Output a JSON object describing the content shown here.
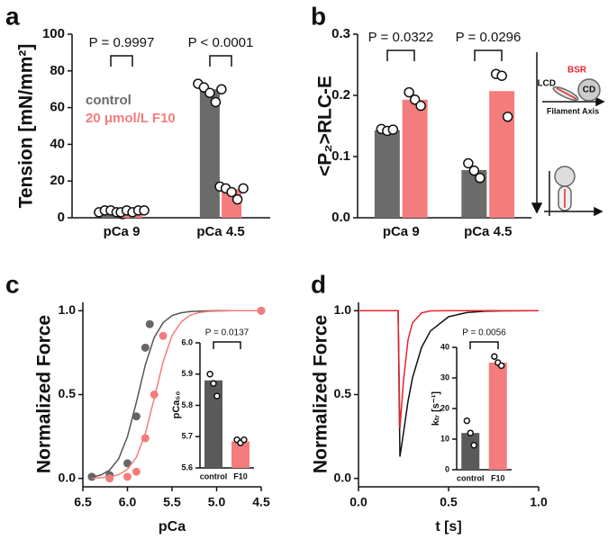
{
  "chart_data": [
    {
      "type": "bar",
      "label": "a",
      "ylabel": "Tension [mN/mm²]",
      "categories": [
        "pCa 9",
        "pCa 4.5"
      ],
      "series": [
        {
          "name": "control",
          "color": "#6b6b6b",
          "values": [
            3,
            70
          ],
          "points": [
            [
              3,
              4,
              4,
              3,
              2
            ],
            [
              73,
              71,
              68,
              63,
              70
            ]
          ]
        },
        {
          "name": "20 μmol/L F10",
          "color": "#f47c7c",
          "values": [
            3.5,
            15.5
          ],
          "points": [
            [
              3,
              4,
              3,
              4,
              4
            ],
            [
              17,
              16,
              14,
              10,
              16
            ]
          ]
        }
      ],
      "ylim": [
        0,
        100
      ],
      "yticks": [
        0,
        20,
        40,
        60,
        80,
        100
      ],
      "annotations": [
        "P = 0.9997",
        "P < 0.0001"
      ]
    },
    {
      "type": "bar",
      "label": "b",
      "ylabel": "<P₂>RLC-E",
      "categories": [
        "pCa 9",
        "pCa 4.5"
      ],
      "series": [
        {
          "color": "#6b6b6b",
          "values": [
            0.143,
            0.078
          ],
          "points": [
            [
              0.145,
              0.142,
              0.144
            ],
            [
              0.089,
              0.077,
              0.065
            ]
          ]
        },
        {
          "color": "#f47c7c",
          "values": [
            0.193,
            0.207
          ],
          "points": [
            [
              0.205,
              0.193,
              0.183
            ],
            [
              0.235,
              0.232,
              0.165
            ]
          ]
        }
      ],
      "ylim": [
        0,
        0.3
      ],
      "yticks": [
        {
          "value": 0,
          "label": "0.0"
        },
        0.1,
        0.2,
        0.3
      ],
      "annotations": [
        "P = 0.0322",
        "P = 0.0296"
      ],
      "diagram_labels": [
        "BSR",
        "LCD",
        "CD",
        "Filament Axis"
      ]
    },
    {
      "type": "line",
      "label": "c",
      "ylabel": "Normalized Force",
      "xlabel": "pCa",
      "series": [
        {
          "color": "#666666",
          "mode": "markers",
          "x": [
            6.4,
            6.2,
            6.0,
            5.9,
            5.8,
            5.75,
            4.5
          ],
          "values": [
            0.01,
            0.02,
            0.09,
            0.37,
            0.78,
            0.92,
            1.0
          ]
        },
        {
          "color": "#f47c7c",
          "mode": "markers",
          "x": [
            6.2,
            6.0,
            5.9,
            5.8,
            5.7,
            5.6,
            4.5
          ],
          "values": [
            0.0,
            0.01,
            0.04,
            0.24,
            0.5,
            0.85,
            1.0
          ]
        },
        {
          "color": "#555555",
          "mode": "line",
          "x": [
            6.4,
            6.3,
            6.2,
            6.1,
            6.0,
            5.9,
            5.8,
            5.7,
            5.6,
            5.5,
            5.4,
            5.3,
            5.2,
            5.1,
            5.0,
            4.9,
            4.8,
            4.7,
            4.6,
            4.5
          ],
          "values": [
            0.008,
            0.02,
            0.05,
            0.116,
            0.249,
            0.454,
            0.676,
            0.84,
            0.929,
            0.971,
            0.988,
            0.995,
            0.998,
            0.999,
            1,
            1,
            1,
            1,
            1,
            1
          ]
        },
        {
          "color": "#f47c7c",
          "mode": "line",
          "x": [
            6.4,
            6.3,
            6.2,
            6.1,
            6.0,
            5.9,
            5.8,
            5.7,
            5.6,
            5.5,
            5.4,
            5.3,
            5.2,
            5.1,
            5.0,
            4.9,
            4.8,
            4.7,
            4.6,
            4.5
          ],
          "values": [
            0.001,
            0.004,
            0.009,
            0.022,
            0.054,
            0.126,
            0.267,
            0.477,
            0.696,
            0.852,
            0.932,
            0.973,
            0.989,
            0.996,
            0.998,
            0.999,
            1,
            1,
            1,
            1
          ]
        }
      ],
      "xlim": [
        6.5,
        4.5
      ],
      "xticks": [
        6.5,
        {
          "value": 6,
          "label": "6.0"
        },
        5.5,
        {
          "value": 5,
          "label": "5.0"
        },
        4.5
      ],
      "ylim": [
        -0.05,
        1.05
      ],
      "yticks": [
        {
          "value": 0,
          "label": "0.0"
        },
        0.5,
        {
          "value": 1,
          "label": "1.0"
        }
      ],
      "inset": {
        "type": "bar",
        "ylabel": "pCa₅₀",
        "categories": [
          "control",
          "F10"
        ],
        "values": [
          5.88,
          5.685
        ],
        "colors": [
          "#5a5a5a",
          "#f47c7c"
        ],
        "points": [
          [
            5.9,
            5.87,
            5.83
          ],
          [
            5.69,
            5.68,
            5.69
          ]
        ],
        "ylim": [
          5.6,
          6.0
        ],
        "yticks": [
          5.6,
          5.7,
          5.8,
          5.9,
          {
            "value": 6,
            "label": "6.0"
          }
        ],
        "annotations": [
          "P = 0.0137"
        ]
      }
    },
    {
      "type": "line",
      "label": "d",
      "ylabel": "Normalized Force",
      "xlabel": "t [s]",
      "series": [
        {
          "color": "#111111",
          "mode": "line",
          "x": [
            0,
            0.2,
            0.22,
            0.23,
            0.25,
            0.275,
            0.3,
            0.35,
            0.4,
            0.5,
            0.6,
            0.7,
            0.8,
            1.0
          ],
          "values": [
            1,
            1,
            1,
            0.13,
            0.273,
            0.461,
            0.601,
            0.781,
            0.88,
            0.964,
            0.989,
            0.997,
            0.999,
            1
          ]
        },
        {
          "color": "#e8262a",
          "mode": "line",
          "x": [
            0,
            0.2,
            0.22,
            0.23,
            0.25,
            0.275,
            0.3,
            0.35,
            0.4,
            0.5,
            0.6,
            0.7,
            0.8,
            1.0
          ],
          "values": [
            1,
            1,
            1,
            0.3,
            0.586,
            0.827,
            0.928,
            0.987,
            0.999,
            1,
            1,
            1,
            1,
            1
          ]
        }
      ],
      "xlim": [
        0,
        1
      ],
      "xticks": [
        {
          "value": 0,
          "label": "0.0"
        },
        0.5,
        {
          "value": 1,
          "label": "1.0"
        }
      ],
      "ylim": [
        -0.05,
        1.05
      ],
      "yticks": [
        {
          "value": 0,
          "label": "0.0"
        },
        0.5,
        {
          "value": 1,
          "label": "1.0"
        }
      ],
      "inset": {
        "type": "bar",
        "ylabel": "kₜᵣ [s⁻¹]",
        "categories": [
          "control",
          "F10"
        ],
        "values": [
          12,
          35
        ],
        "colors": [
          "#5a5a5a",
          "#f47c7c"
        ],
        "points": [
          [
            16,
            12,
            8
          ],
          [
            37,
            35,
            34
          ]
        ],
        "ylim": [
          0,
          40
        ],
        "yticks": [
          0,
          10,
          20,
          30,
          40
        ],
        "annotations": [
          "P = 0.0056"
        ]
      }
    }
  ]
}
